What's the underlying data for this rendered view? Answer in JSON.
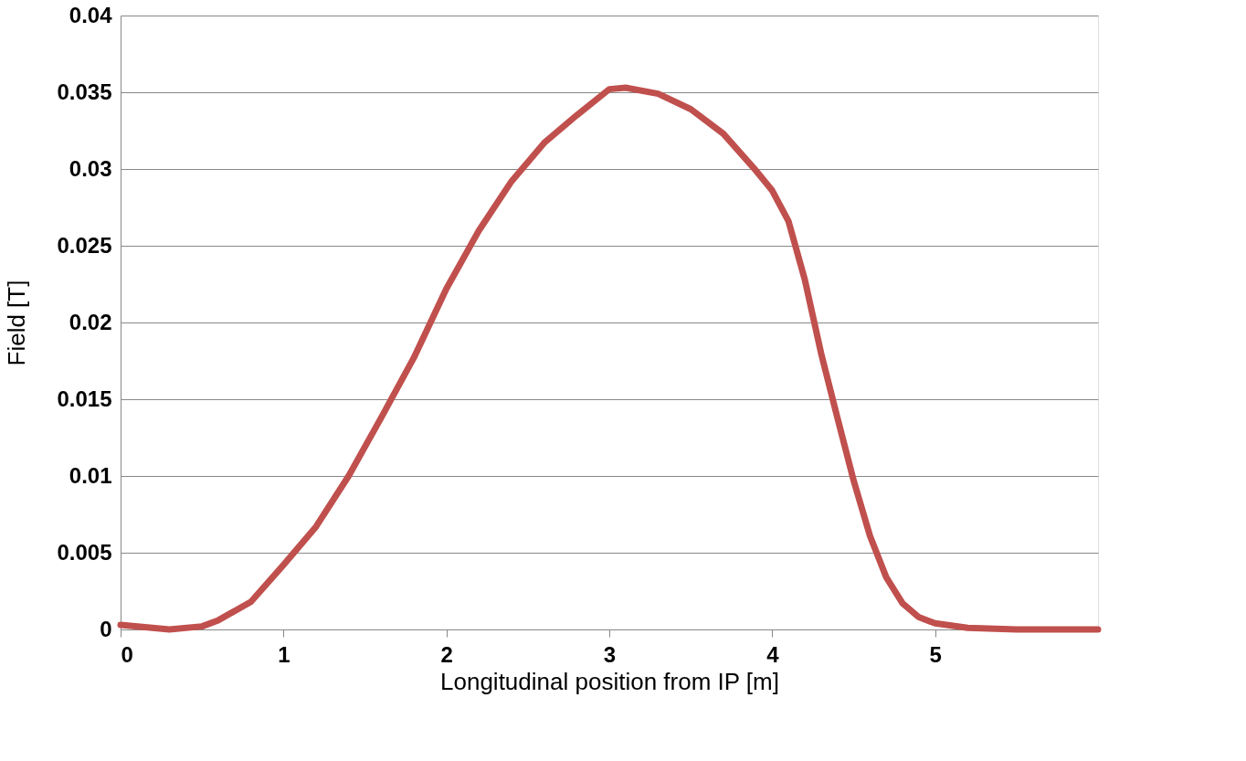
{
  "chart_data": {
    "type": "line",
    "xlabel": "Longitudinal position from IP [m]",
    "ylabel": "Field [T]",
    "x": [
      0,
      0.3,
      0.5,
      0.6,
      0.8,
      1.0,
      1.2,
      1.4,
      1.6,
      1.8,
      2.0,
      2.2,
      2.4,
      2.6,
      2.8,
      3.0,
      3.1,
      3.3,
      3.5,
      3.7,
      3.9,
      4.0,
      4.1,
      4.2,
      4.3,
      4.4,
      4.5,
      4.6,
      4.7,
      4.8,
      4.9,
      5.0,
      5.2,
      5.5,
      6.0
    ],
    "series": [
      {
        "color": "#c0504d",
        "values": [
          0.0003,
          0.0,
          0.0002,
          0.0006,
          0.0018,
          0.0042,
          0.0067,
          0.01,
          0.0138,
          0.0177,
          0.0222,
          0.026,
          0.0292,
          0.0317,
          0.0335,
          0.0352,
          0.0353,
          0.0349,
          0.0339,
          0.0323,
          0.0299,
          0.0286,
          0.0266,
          0.0228,
          0.018,
          0.0138,
          0.0097,
          0.0061,
          0.0034,
          0.0017,
          0.0008,
          0.0004,
          0.0001,
          0.0,
          0.0
        ]
      }
    ],
    "xlim": [
      0,
      6
    ],
    "xticks": [
      0,
      1,
      2,
      3,
      4,
      5
    ],
    "ylim": [
      0,
      0.04
    ],
    "yticks": [
      0,
      0.005,
      0.01,
      0.015,
      0.02,
      0.025,
      0.03,
      0.035,
      0.04
    ],
    "grid": "y",
    "legend": false,
    "marker": "none",
    "line_style": "solid"
  }
}
